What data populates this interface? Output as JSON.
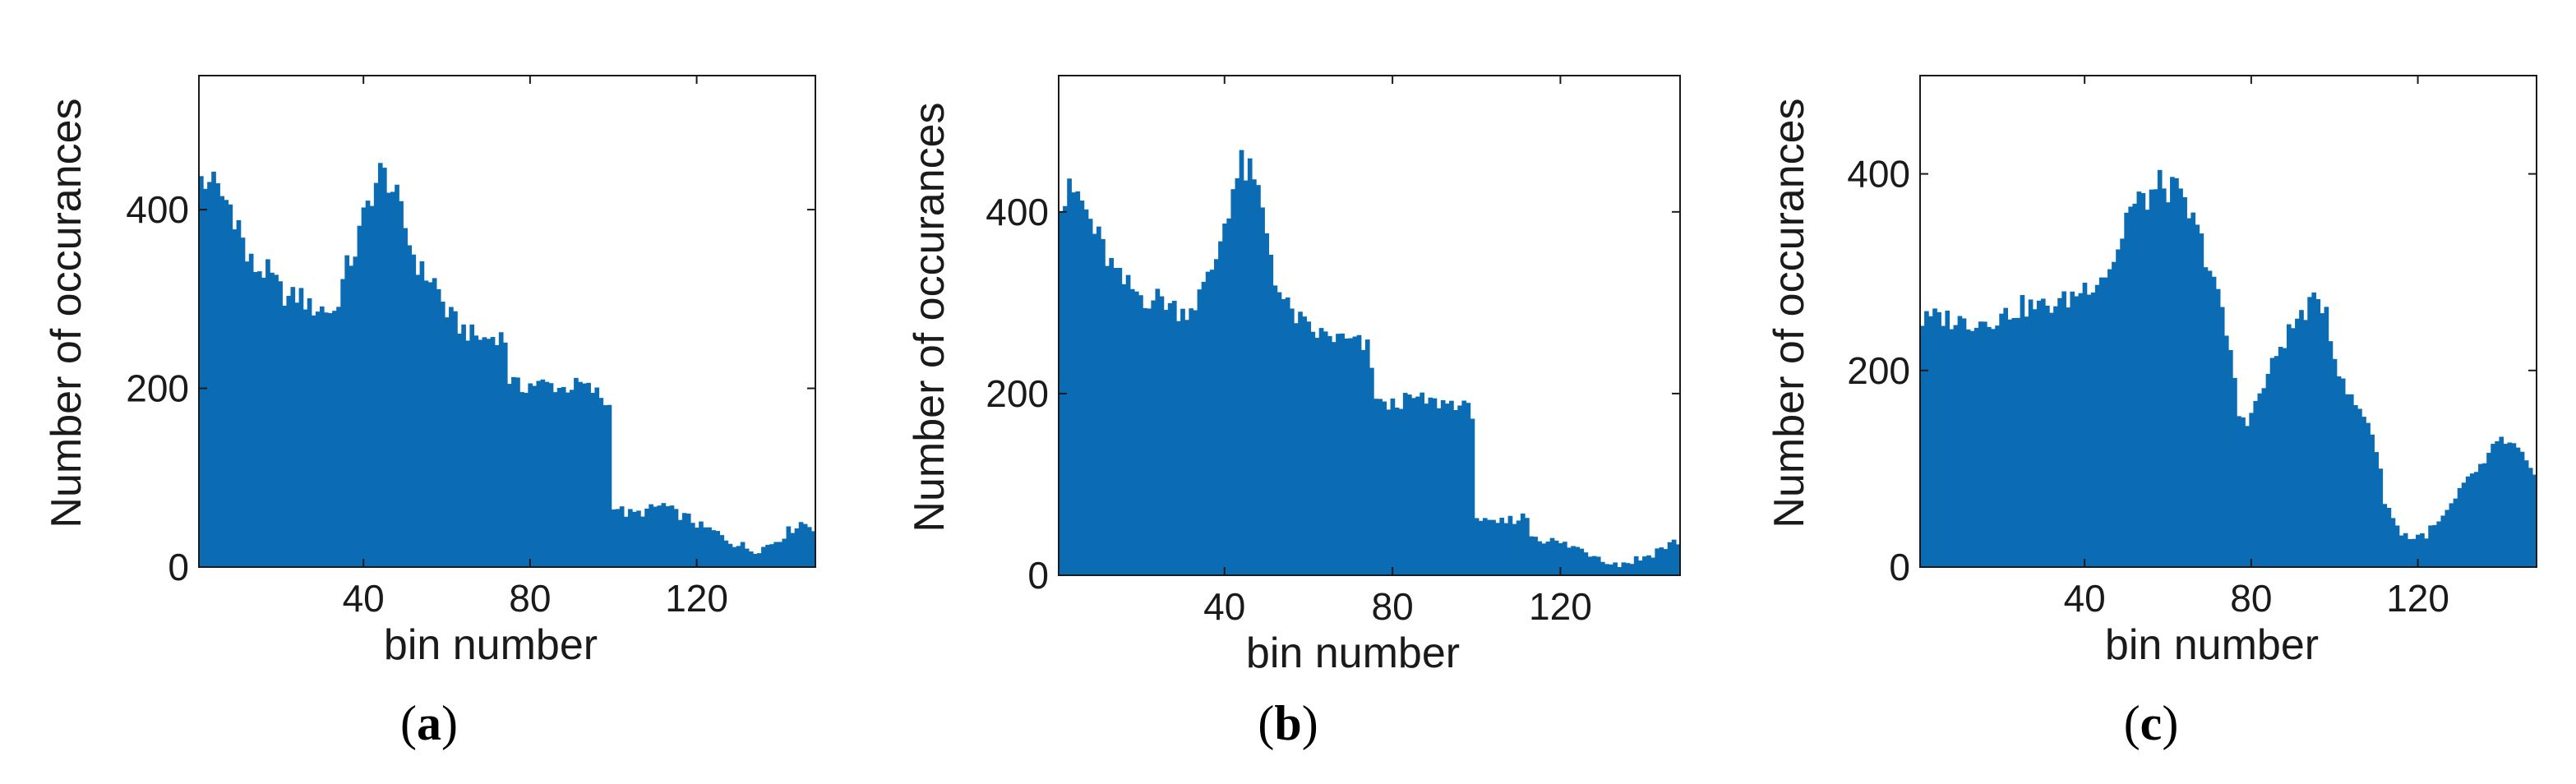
{
  "figure": {
    "bar_color": "#0b6cb4",
    "axis_color": "#1a1a1a"
  },
  "chart_data": [
    {
      "type": "bar",
      "panel_label": "a",
      "panel_label_display": "(a)",
      "xlabel": "bin number",
      "ylabel": "Number of occurances",
      "xlim": [
        0.5,
        148.5
      ],
      "ylim": [
        0,
        550
      ],
      "xticks": [
        40,
        80,
        120
      ],
      "yticks": [
        0,
        200,
        400
      ],
      "grid": false,
      "bins": 148,
      "keypoints": [
        [
          1,
          435
        ],
        [
          2,
          425
        ],
        [
          3,
          440
        ],
        [
          5,
          420
        ],
        [
          8,
          405
        ],
        [
          10,
          385
        ],
        [
          12,
          345
        ],
        [
          14,
          335
        ],
        [
          17,
          330
        ],
        [
          20,
          310
        ],
        [
          22,
          300
        ],
        [
          25,
          305
        ],
        [
          27,
          290
        ],
        [
          30,
          290
        ],
        [
          33,
          285
        ],
        [
          36,
          335
        ],
        [
          38,
          355
        ],
        [
          40,
          390
        ],
        [
          42,
          420
        ],
        [
          44,
          440
        ],
        [
          46,
          435
        ],
        [
          48,
          410
        ],
        [
          50,
          380
        ],
        [
          52,
          350
        ],
        [
          54,
          330
        ],
        [
          57,
          320
        ],
        [
          60,
          285
        ],
        [
          63,
          270
        ],
        [
          66,
          260
        ],
        [
          69,
          255
        ],
        [
          72,
          260
        ],
        [
          74,
          255
        ],
        [
          75,
          210
        ],
        [
          78,
          200
        ],
        [
          80,
          205
        ],
        [
          84,
          205
        ],
        [
          88,
          200
        ],
        [
          92,
          205
        ],
        [
          96,
          195
        ],
        [
          99,
          180
        ],
        [
          100,
          70
        ],
        [
          103,
          60
        ],
        [
          106,
          60
        ],
        [
          109,
          65
        ],
        [
          112,
          70
        ],
        [
          115,
          60
        ],
        [
          118,
          55
        ],
        [
          121,
          45
        ],
        [
          124,
          40
        ],
        [
          127,
          32
        ],
        [
          130,
          25
        ],
        [
          133,
          20
        ],
        [
          136,
          22
        ],
        [
          139,
          30
        ],
        [
          142,
          40
        ],
        [
          145,
          50
        ],
        [
          148,
          45
        ]
      ]
    },
    {
      "type": "bar",
      "panel_label": "b",
      "panel_label_display": "(b)",
      "xlabel": "bin number",
      "ylabel": "Number of occurances",
      "xlim": [
        0.5,
        148.5
      ],
      "ylim": [
        0,
        550
      ],
      "xticks": [
        40,
        80,
        120
      ],
      "yticks": [
        0,
        200,
        400
      ],
      "grid": false,
      "bins": 148,
      "keypoints": [
        [
          1,
          405
        ],
        [
          3,
          420
        ],
        [
          5,
          420
        ],
        [
          7,
          400
        ],
        [
          10,
          370
        ],
        [
          12,
          350
        ],
        [
          15,
          325
        ],
        [
          18,
          315
        ],
        [
          21,
          305
        ],
        [
          25,
          305
        ],
        [
          28,
          295
        ],
        [
          30,
          290
        ],
        [
          33,
          300
        ],
        [
          36,
          325
        ],
        [
          38,
          350
        ],
        [
          40,
          390
        ],
        [
          42,
          425
        ],
        [
          44,
          450
        ],
        [
          46,
          440
        ],
        [
          48,
          420
        ],
        [
          50,
          380
        ],
        [
          52,
          330
        ],
        [
          54,
          300
        ],
        [
          57,
          285
        ],
        [
          60,
          270
        ],
        [
          63,
          265
        ],
        [
          66,
          262
        ],
        [
          69,
          258
        ],
        [
          72,
          255
        ],
        [
          74,
          250
        ],
        [
          76,
          200
        ],
        [
          78,
          185
        ],
        [
          81,
          190
        ],
        [
          85,
          195
        ],
        [
          90,
          190
        ],
        [
          95,
          190
        ],
        [
          99,
          180
        ],
        [
          100,
          65
        ],
        [
          103,
          55
        ],
        [
          106,
          58
        ],
        [
          109,
          62
        ],
        [
          112,
          65
        ],
        [
          113,
          45
        ],
        [
          116,
          40
        ],
        [
          120,
          35
        ],
        [
          124,
          30
        ],
        [
          127,
          25
        ],
        [
          130,
          20
        ],
        [
          133,
          12
        ],
        [
          136,
          15
        ],
        [
          140,
          20
        ],
        [
          144,
          30
        ],
        [
          148,
          38
        ]
      ]
    },
    {
      "type": "bar",
      "panel_label": "c",
      "panel_label_display": "(c)",
      "xlabel": "bin number",
      "ylabel": "Number of occurances",
      "xlim": [
        0.5,
        148.5
      ],
      "ylim": [
        0,
        500
      ],
      "xticks": [
        40,
        80,
        120
      ],
      "yticks": [
        0,
        200,
        400
      ],
      "grid": false,
      "bins": 148,
      "keypoints": [
        [
          1,
          250
        ],
        [
          5,
          255
        ],
        [
          10,
          250
        ],
        [
          15,
          250
        ],
        [
          20,
          255
        ],
        [
          25,
          265
        ],
        [
          30,
          265
        ],
        [
          35,
          270
        ],
        [
          40,
          285
        ],
        [
          45,
          300
        ],
        [
          48,
          320
        ],
        [
          50,
          360
        ],
        [
          53,
          370
        ],
        [
          56,
          380
        ],
        [
          59,
          390
        ],
        [
          62,
          380
        ],
        [
          65,
          360
        ],
        [
          68,
          330
        ],
        [
          71,
          295
        ],
        [
          73,
          255
        ],
        [
          75,
          220
        ],
        [
          77,
          155
        ],
        [
          79,
          150
        ],
        [
          81,
          165
        ],
        [
          84,
          195
        ],
        [
          87,
          225
        ],
        [
          90,
          245
        ],
        [
          93,
          262
        ],
        [
          96,
          270
        ],
        [
          98,
          265
        ],
        [
          100,
          215
        ],
        [
          102,
          185
        ],
        [
          105,
          165
        ],
        [
          108,
          150
        ],
        [
          110,
          120
        ],
        [
          112,
          70
        ],
        [
          115,
          40
        ],
        [
          118,
          30
        ],
        [
          121,
          32
        ],
        [
          124,
          40
        ],
        [
          127,
          55
        ],
        [
          130,
          75
        ],
        [
          133,
          95
        ],
        [
          136,
          105
        ],
        [
          138,
          120
        ],
        [
          140,
          130
        ],
        [
          142,
          125
        ],
        [
          144,
          120
        ],
        [
          146,
          105
        ],
        [
          148,
          90
        ]
      ]
    }
  ]
}
